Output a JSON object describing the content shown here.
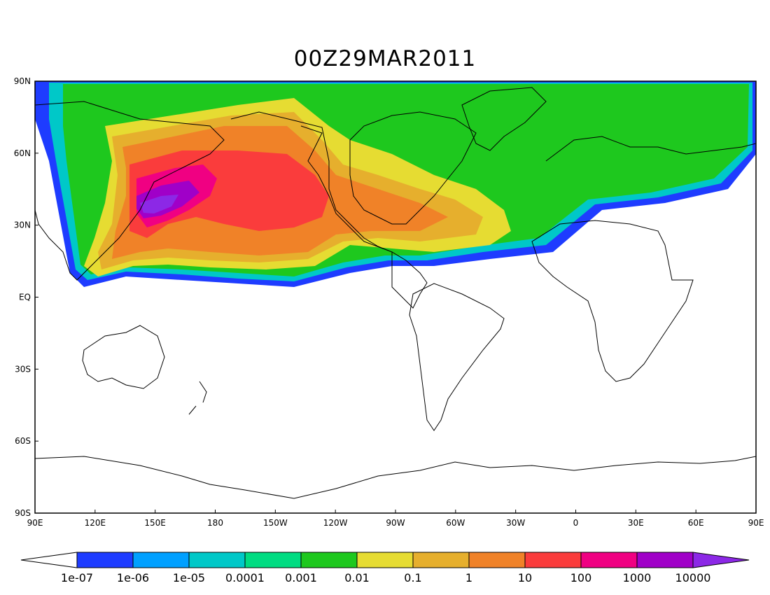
{
  "title": "00Z29MAR2011",
  "lat_labels": [
    "90N",
    "60N",
    "30N",
    "EQ",
    "30S",
    "60S",
    "90S"
  ],
  "lon_labels": [
    "90E",
    "120E",
    "150E",
    "180",
    "150W",
    "120W",
    "90W",
    "60W",
    "30W",
    "0",
    "30E",
    "60E",
    "90E"
  ],
  "colorbar": {
    "under_color": "#ffffff",
    "over_color": "#8c28e6",
    "colors": [
      "#1e3cff",
      "#00a0ff",
      "#00c8c8",
      "#00dc82",
      "#1ec81e",
      "#e6dc32",
      "#e6af2d",
      "#f08228",
      "#fa3c3c",
      "#f00082",
      "#a000c8"
    ],
    "labels": [
      "1e-07",
      "1e-06",
      "1e-05",
      "0.0001",
      "0.001",
      "0.01",
      "0.1",
      "1",
      "10",
      "100",
      "1000",
      "10000"
    ]
  }
}
